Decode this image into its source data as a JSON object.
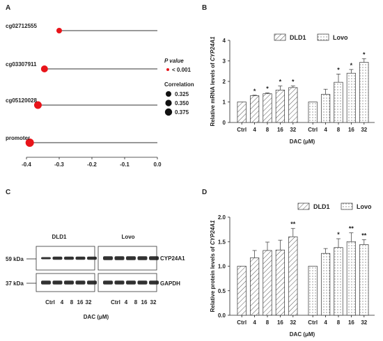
{
  "panels": {
    "a": "A",
    "b": "B",
    "c": "C",
    "d": "D"
  },
  "panel_a": {
    "legend_pvalue_title": "P value",
    "legend_pvalue_item": "< 0.001",
    "legend_corr_title": "Correlation",
    "legend_corr_items": [
      "0.325",
      "0.350",
      "0.375"
    ],
    "colors": {
      "dot": "#e8141a",
      "line": "#333333"
    }
  },
  "panel_b_legend": [
    "DLD1",
    "Lovo"
  ],
  "panel_c": {
    "dld1_label": "DLD1",
    "lovo_label": "Lovo",
    "kda_top": "59 kDa",
    "kda_bottom": "37 kDa",
    "band_top": "CYP24A1",
    "band_bottom": "GAPDH",
    "lanes": [
      "Ctrl",
      "4",
      "8",
      "16",
      "32",
      "Ctrl",
      "4",
      "8",
      "16",
      "32"
    ],
    "xlabel": "DAC (μM)"
  },
  "panel_d_legend": [
    "DLD1",
    "Lovo"
  ],
  "chart_data": [
    {
      "type": "scatter",
      "panel": "A",
      "categories": [
        "cg02712555",
        "cg03307911",
        "cg05120028",
        "promoter"
      ],
      "values": [
        -0.3,
        -0.345,
        -0.365,
        -0.39
      ],
      "sizes": [
        0.325,
        0.35,
        0.362,
        0.375
      ],
      "xlim": [
        -0.4,
        0.0
      ],
      "xticks": [
        "-0.4",
        "-0.3",
        "-0.2",
        "-0.1",
        "0.0"
      ],
      "xticks_values": [
        -0.4,
        -0.3,
        -0.2,
        -0.1,
        0.0
      ]
    },
    {
      "type": "bar",
      "panel": "B",
      "categories": [
        "Ctrl",
        "4",
        "8",
        "16",
        "32"
      ],
      "series": [
        {
          "name": "DLD1",
          "values": [
            1.0,
            1.3,
            1.4,
            1.58,
            1.7
          ],
          "errors": [
            0,
            0.03,
            0.04,
            0.2,
            0.08
          ],
          "sig": [
            "",
            "*",
            "*",
            "*",
            "*"
          ]
        },
        {
          "name": "Lovo",
          "values": [
            1.0,
            1.37,
            1.96,
            2.4,
            2.93
          ],
          "errors": [
            0,
            0.25,
            0.4,
            0.18,
            0.18
          ],
          "sig": [
            "",
            "",
            "*",
            "*",
            "*"
          ]
        }
      ],
      "ylabel": "Relative mRNA levels of CYP24A1",
      "xlabel": "DAC (μM)",
      "ylim": [
        0,
        4
      ],
      "yticks": [
        "0",
        "1",
        "2",
        "3",
        "4"
      ]
    },
    {
      "type": "bar",
      "panel": "D",
      "categories": [
        "Ctrl",
        "4",
        "8",
        "16",
        "32"
      ],
      "series": [
        {
          "name": "DLD1",
          "values": [
            1.0,
            1.17,
            1.32,
            1.33,
            1.6
          ],
          "errors": [
            0,
            0.15,
            0.17,
            0.2,
            0.17
          ],
          "sig": [
            "",
            "",
            "",
            "",
            "**"
          ]
        },
        {
          "name": "Lovo",
          "values": [
            1.0,
            1.26,
            1.38,
            1.5,
            1.44
          ],
          "errors": [
            0,
            0.1,
            0.18,
            0.18,
            0.1
          ],
          "sig": [
            "",
            "",
            "*",
            "**",
            "**"
          ]
        }
      ],
      "ylabel": "Relative protein levels of CYP24A1",
      "xlabel": "DAC (μM)",
      "ylim": [
        0,
        2.0
      ],
      "yticks": [
        "0.0",
        "0.5",
        "1.0",
        "1.5",
        "2.0"
      ]
    }
  ]
}
